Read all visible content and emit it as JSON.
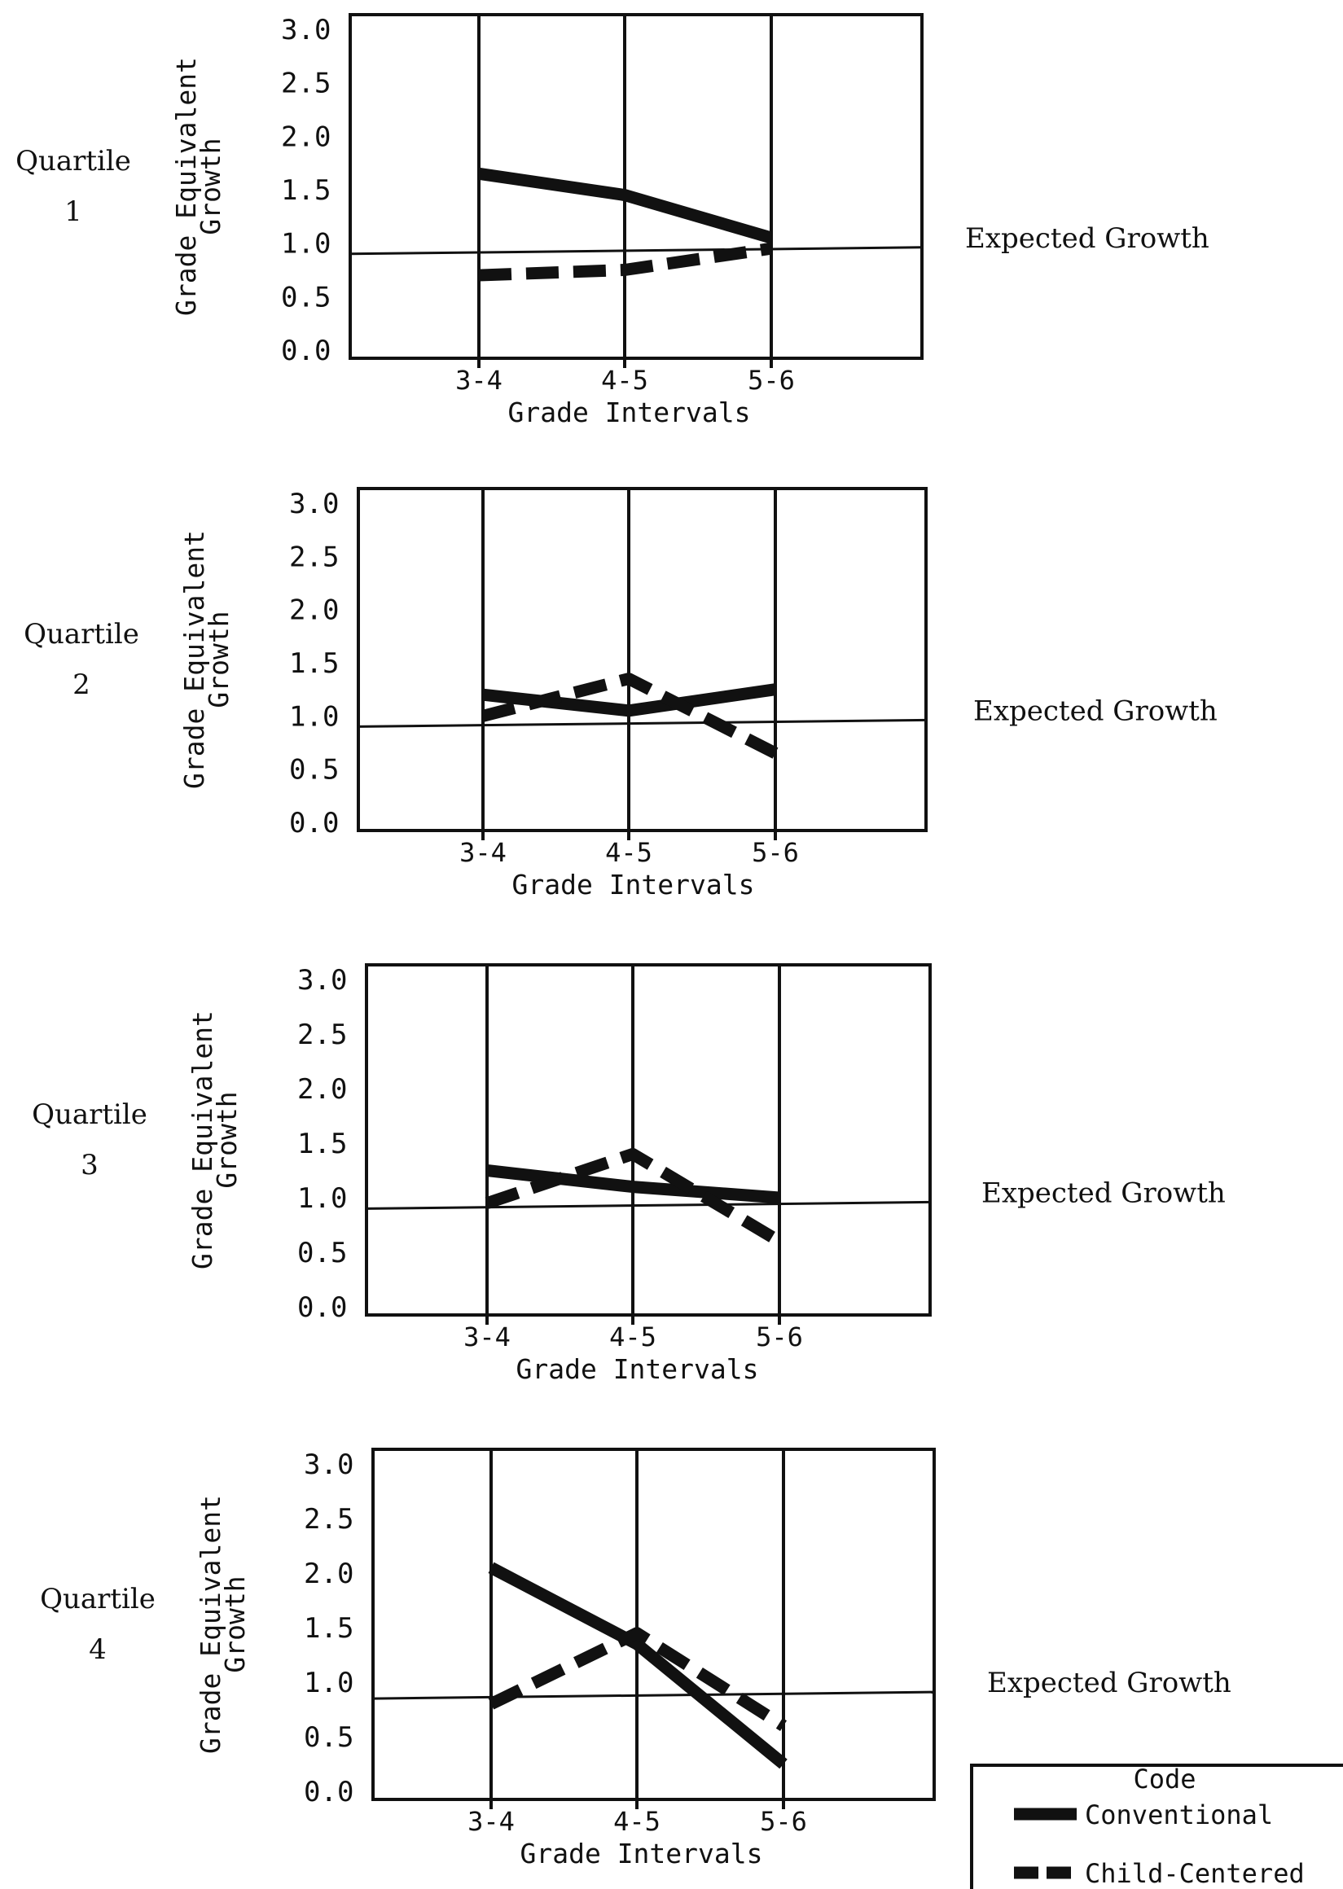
{
  "expected_growth_label": "Expected Growth",
  "legend": {
    "title": "Code",
    "conventional": "Conventional",
    "child_centered": "Child-Centered"
  },
  "chart_data": [
    {
      "type": "line",
      "panel_label": "Quartile",
      "panel_number": "1",
      "ylabel": "Grade Equivalent Growth",
      "xlabel": "Grade Intervals",
      "categories": [
        "3-4",
        "4-5",
        "5-6"
      ],
      "yticks": [
        "0.0",
        "0.5",
        "1.0",
        "1.5",
        "2.0",
        "2.5",
        "3.0"
      ],
      "ylim": [
        0,
        3
      ],
      "expected_growth": 0.9,
      "series": [
        {
          "name": "Conventional",
          "style": "solid",
          "values": [
            1.65,
            1.45,
            1.05
          ]
        },
        {
          "name": "Child-Centered",
          "style": "dashed",
          "values": [
            0.7,
            0.75,
            0.95
          ]
        }
      ]
    },
    {
      "type": "line",
      "panel_label": "Quartile",
      "panel_number": "2",
      "ylabel": "Grade Equivalent Growth",
      "xlabel": "Grade Intervals",
      "categories": [
        "3-4",
        "4-5",
        "5-6"
      ],
      "yticks": [
        "0.0",
        "0.5",
        "1.0",
        "1.5",
        "2.0",
        "2.5",
        "3.0"
      ],
      "ylim": [
        0,
        3
      ],
      "expected_growth": 0.9,
      "series": [
        {
          "name": "Conventional",
          "style": "solid",
          "values": [
            1.2,
            1.05,
            1.25
          ]
        },
        {
          "name": "Child-Centered",
          "style": "dashed",
          "values": [
            1.0,
            1.35,
            0.65
          ]
        }
      ]
    },
    {
      "type": "line",
      "panel_label": "Quartile",
      "panel_number": "3",
      "ylabel": "Grade Equivalent Growth",
      "xlabel": "Grade Intervals",
      "categories": [
        "3-4",
        "4-5",
        "5-6"
      ],
      "yticks": [
        "0.0",
        "0.5",
        "1.0",
        "1.5",
        "2.0",
        "2.5",
        "3.0"
      ],
      "ylim": [
        0,
        3
      ],
      "expected_growth": 0.9,
      "series": [
        {
          "name": "Conventional",
          "style": "solid",
          "values": [
            1.25,
            1.1,
            1.0
          ]
        },
        {
          "name": "Child-Centered",
          "style": "dashed",
          "values": [
            0.95,
            1.4,
            0.6
          ]
        }
      ]
    },
    {
      "type": "line",
      "panel_label": "Quartile",
      "panel_number": "4",
      "ylabel": "Grade Equivalent Growth",
      "xlabel": "Grade Intervals",
      "categories": [
        "3-4",
        "4-5",
        "5-6"
      ],
      "yticks": [
        "0.0",
        "0.5",
        "1.0",
        "1.5",
        "2.0",
        "2.5",
        "3.0"
      ],
      "ylim": [
        0,
        3
      ],
      "expected_growth": 0.85,
      "series": [
        {
          "name": "Conventional",
          "style": "solid",
          "values": [
            2.05,
            1.35,
            0.25
          ]
        },
        {
          "name": "Child-Centered",
          "style": "dashed",
          "values": [
            0.8,
            1.45,
            0.6
          ]
        }
      ]
    }
  ]
}
